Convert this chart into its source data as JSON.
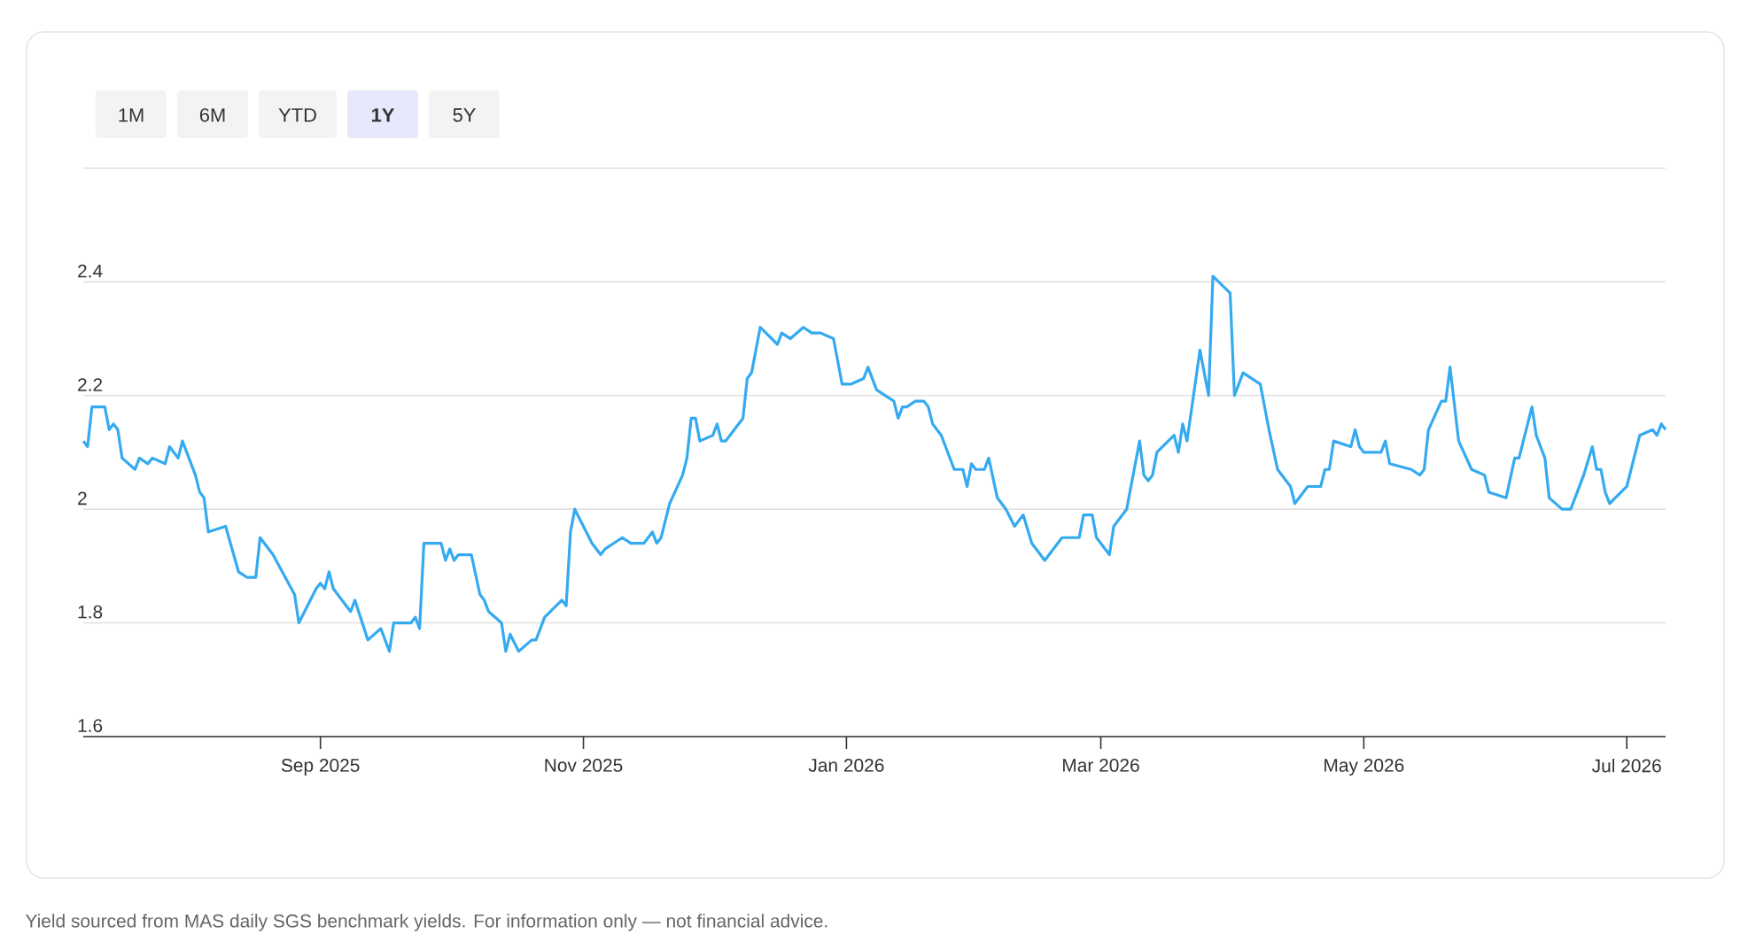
{
  "chart_data": {
    "type": "line",
    "x": [
      "2025-07-08",
      "2025-07-09",
      "2025-07-10",
      "2025-07-13",
      "2025-07-14",
      "2025-07-15",
      "2025-07-16",
      "2025-07-17",
      "2025-07-20",
      "2025-07-21",
      "2025-07-23",
      "2025-07-24",
      "2025-07-27",
      "2025-07-28",
      "2025-07-30",
      "2025-07-31",
      "2025-08-03",
      "2025-08-04",
      "2025-08-05",
      "2025-08-06",
      "2025-08-10",
      "2025-08-13",
      "2025-08-15",
      "2025-08-17",
      "2025-08-18",
      "2025-08-21",
      "2025-08-26",
      "2025-08-27",
      "2025-08-29",
      "2025-08-31",
      "2025-09-01",
      "2025-09-02",
      "2025-09-03",
      "2025-09-04",
      "2025-09-08",
      "2025-09-09",
      "2025-09-12",
      "2025-09-15",
      "2025-09-17",
      "2025-09-18",
      "2025-09-22",
      "2025-09-23",
      "2025-09-24",
      "2025-09-25",
      "2025-09-29",
      "2025-09-30",
      "2025-10-01",
      "2025-10-02",
      "2025-10-03",
      "2025-10-06",
      "2025-10-08",
      "2025-10-09",
      "2025-10-10",
      "2025-10-13",
      "2025-10-14",
      "2025-10-15",
      "2025-10-17",
      "2025-10-20",
      "2025-10-21",
      "2025-10-23",
      "2025-10-27",
      "2025-10-28",
      "2025-10-29",
      "2025-10-30",
      "2025-11-01",
      "2025-11-03",
      "2025-11-05",
      "2025-11-06",
      "2025-11-10",
      "2025-11-12",
      "2025-11-15",
      "2025-11-17",
      "2025-11-18",
      "2025-11-19",
      "2025-11-21",
      "2025-11-24",
      "2025-11-25",
      "2025-11-26",
      "2025-11-27",
      "2025-11-28",
      "2025-12-01",
      "2025-12-02",
      "2025-12-03",
      "2025-12-04",
      "2025-12-06",
      "2025-12-08",
      "2025-12-09",
      "2025-12-10",
      "2025-12-12",
      "2025-12-16",
      "2025-12-17",
      "2025-12-19",
      "2025-12-22",
      "2025-12-24",
      "2025-12-26",
      "2025-12-29",
      "2025-12-31",
      "2026-01-02",
      "2026-01-05",
      "2026-01-06",
      "2026-01-08",
      "2026-01-12",
      "2026-01-13",
      "2026-01-14",
      "2026-01-15",
      "2026-01-17",
      "2026-01-19",
      "2026-01-20",
      "2026-01-21",
      "2026-01-23",
      "2026-01-26",
      "2026-01-28",
      "2026-01-29",
      "2026-01-30",
      "2026-01-31",
      "2026-02-02",
      "2026-02-03",
      "2026-02-05",
      "2026-02-07",
      "2026-02-09",
      "2026-02-11",
      "2026-02-13",
      "2026-02-16",
      "2026-02-20",
      "2026-02-23",
      "2026-02-24",
      "2026-02-25",
      "2026-02-27",
      "2026-02-28",
      "2026-03-03",
      "2026-03-04",
      "2026-03-05",
      "2026-03-07",
      "2026-03-10",
      "2026-03-11",
      "2026-03-12",
      "2026-03-13",
      "2026-03-14",
      "2026-03-18",
      "2026-03-19",
      "2026-03-20",
      "2026-03-21",
      "2026-03-24",
      "2026-03-26",
      "2026-03-27",
      "2026-03-31",
      "2026-04-01",
      "2026-04-03",
      "2026-04-07",
      "2026-04-09",
      "2026-04-11",
      "2026-04-14",
      "2026-04-15",
      "2026-04-16",
      "2026-04-18",
      "2026-04-21",
      "2026-04-22",
      "2026-04-23",
      "2026-04-24",
      "2026-04-28",
      "2026-04-29",
      "2026-04-30",
      "2026-05-01",
      "2026-05-05",
      "2026-05-06",
      "2026-05-07",
      "2026-05-12",
      "2026-05-14",
      "2026-05-15",
      "2026-05-16",
      "2026-05-19",
      "2026-05-20",
      "2026-05-21",
      "2026-05-23",
      "2026-05-26",
      "2026-05-29",
      "2026-05-30",
      "2026-06-03",
      "2026-06-05",
      "2026-06-06",
      "2026-06-09",
      "2026-06-10",
      "2026-06-12",
      "2026-06-13",
      "2026-06-16",
      "2026-06-18",
      "2026-06-21",
      "2026-06-23",
      "2026-06-24",
      "2026-06-25",
      "2026-06-26",
      "2026-06-27",
      "2026-07-01",
      "2026-07-04",
      "2026-07-07",
      "2026-07-08",
      "2026-07-09",
      "2026-07-10"
    ],
    "series": [
      {
        "color": "#35aaf0",
        "values": [
          2.12,
          2.11,
          2.18,
          2.18,
          2.14,
          2.15,
          2.14,
          2.09,
          2.07,
          2.09,
          2.08,
          2.09,
          2.08,
          2.11,
          2.09,
          2.12,
          2.06,
          2.03,
          2.02,
          1.96,
          1.97,
          1.89,
          1.88,
          1.88,
          1.95,
          1.92,
          1.85,
          1.8,
          1.83,
          1.86,
          1.87,
          1.86,
          1.89,
          1.86,
          1.82,
          1.84,
          1.77,
          1.79,
          1.75,
          1.8,
          1.8,
          1.81,
          1.79,
          1.94,
          1.94,
          1.91,
          1.93,
          1.91,
          1.92,
          1.92,
          1.85,
          1.84,
          1.82,
          1.8,
          1.75,
          1.78,
          1.75,
          1.77,
          1.77,
          1.81,
          1.84,
          1.83,
          1.96,
          2.0,
          1.97,
          1.94,
          1.92,
          1.93,
          1.95,
          1.94,
          1.94,
          1.96,
          1.94,
          1.95,
          2.01,
          2.06,
          2.09,
          2.16,
          2.16,
          2.12,
          2.13,
          2.15,
          2.12,
          2.12,
          2.14,
          2.16,
          2.23,
          2.24,
          2.32,
          2.29,
          2.31,
          2.3,
          2.32,
          2.31,
          2.31,
          2.3,
          2.22,
          2.22,
          2.23,
          2.25,
          2.21,
          2.19,
          2.16,
          2.18,
          2.18,
          2.19,
          2.19,
          2.18,
          2.15,
          2.13,
          2.07,
          2.07,
          2.04,
          2.08,
          2.07,
          2.07,
          2.09,
          2.02,
          2.0,
          1.97,
          1.99,
          1.94,
          1.91,
          1.95,
          1.95,
          1.95,
          1.99,
          1.99,
          1.95,
          1.92,
          1.97,
          1.98,
          2.0,
          2.12,
          2.06,
          2.05,
          2.06,
          2.1,
          2.13,
          2.1,
          2.15,
          2.12,
          2.28,
          2.2,
          2.41,
          2.38,
          2.2,
          2.24,
          2.22,
          2.14,
          2.07,
          2.04,
          2.01,
          2.02,
          2.04,
          2.04,
          2.07,
          2.07,
          2.12,
          2.11,
          2.14,
          2.11,
          2.1,
          2.1,
          2.12,
          2.08,
          2.07,
          2.06,
          2.07,
          2.14,
          2.19,
          2.19,
          2.25,
          2.12,
          2.07,
          2.06,
          2.03,
          2.02,
          2.09,
          2.09,
          2.18,
          2.13,
          2.09,
          2.02,
          2.0,
          2.0,
          2.06,
          2.11,
          2.07,
          2.07,
          2.03,
          2.01,
          2.04,
          2.13,
          2.14,
          2.13,
          2.15,
          2.14
        ]
      }
    ],
    "xlim": [
      "2025-07-08",
      "2026-07-10"
    ],
    "xticks": [
      {
        "value": "2025-09-01",
        "label": "Sep 2025"
      },
      {
        "value": "2025-11-01",
        "label": "Nov 2025"
      },
      {
        "value": "2026-01-01",
        "label": "Jan 2026"
      },
      {
        "value": "2026-03-01",
        "label": "Mar 2026"
      },
      {
        "value": "2026-05-01",
        "label": "May 2026"
      },
      {
        "value": "2026-07-01",
        "label": "Jul 2026"
      }
    ],
    "ylim": [
      1.6,
      2.6
    ],
    "yticks": [
      1.6,
      1.8,
      2,
      2.2,
      2.4,
      {
        "value": 2.6,
        "label": null
      }
    ],
    "grid": "y",
    "marker": "none",
    "line_style": "solid",
    "annotations": [
      "1M",
      "6M",
      "YTD",
      "**1Y**",
      "5Y",
      "Yield sourced from MAS daily SGS benchmark yields. For information only — not financial advice."
    ]
  }
}
